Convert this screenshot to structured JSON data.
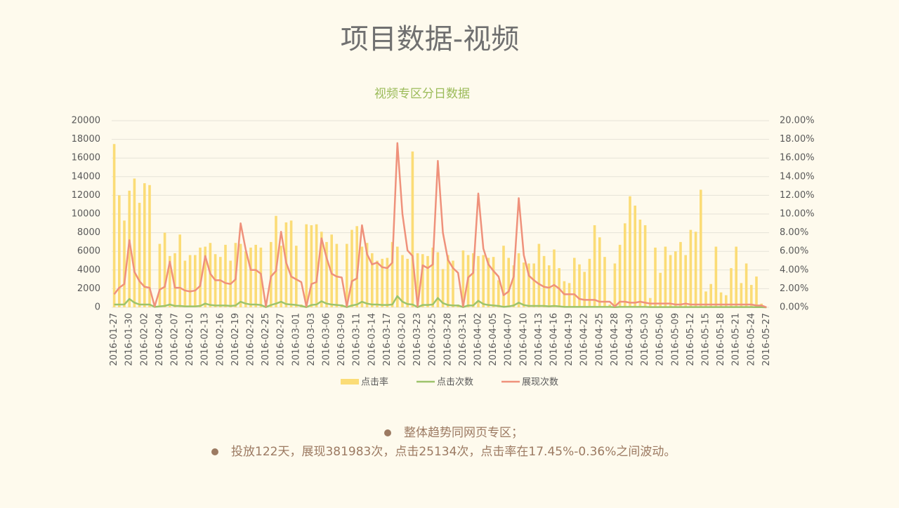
{
  "title": "项目数据-视频",
  "chart_data": {
    "type": "bar",
    "title": "视频专区分日数据",
    "categories": [
      "2016-01-27",
      null,
      null,
      "2016-01-30",
      null,
      null,
      "2016-02-02",
      null,
      null,
      "2016-02-04",
      null,
      null,
      "2016-02-07",
      null,
      null,
      "2016-02-10",
      null,
      null,
      "2016-02-13",
      null,
      null,
      "2016-02-16",
      null,
      null,
      "2016-02-19",
      null,
      null,
      "2016-02-22",
      null,
      null,
      "2016-02-25",
      null,
      null,
      "2016-02-27",
      null,
      null,
      "2016-03-01",
      null,
      null,
      "2016-03-03",
      null,
      null,
      "2016-03-06",
      null,
      null,
      "2016-03-09",
      null,
      null,
      "2016-03-11",
      null,
      null,
      "2016-03-14",
      null,
      null,
      "2016-03-17",
      null,
      null,
      "2016-03-20",
      null,
      null,
      "2016-03-23",
      null,
      null,
      "2016-03-25",
      null,
      null,
      "2016-03-28",
      null,
      null,
      "2016-03-31",
      null,
      null,
      "2016-04-02",
      null,
      null,
      "2016-04-05",
      null,
      null,
      "2016-04-07",
      null,
      null,
      "2016-04-10",
      null,
      null,
      "2016-04-13",
      null,
      null,
      "2016-04-16",
      null,
      null,
      "2016-04-19",
      null,
      null,
      "2016-04-22",
      null,
      null,
      "2016-04-25",
      null,
      null,
      "2016-04-28",
      null,
      null,
      "2016-04-30",
      null,
      null,
      "2016-05-03",
      null,
      null,
      "2016-05-06",
      null,
      null,
      "2016-05-09",
      null,
      null,
      "2016-05-12",
      null,
      null,
      "2016-05-15",
      null,
      null,
      "2016-05-18",
      null,
      null,
      "2016-05-21",
      null,
      null,
      "2016-05-24",
      null,
      null,
      "2016-05-27"
    ],
    "series": [
      {
        "name": "点击率",
        "type": "bar",
        "axis": "y2",
        "color": "#fbdc76",
        "values": [
          17.5,
          12.0,
          9.3,
          12.5,
          13.8,
          11.2,
          13.3,
          13.1,
          0.3,
          6.8,
          8.0,
          5.5,
          5.8,
          7.8,
          5.0,
          5.6,
          5.6,
          6.4,
          6.5,
          6.9,
          5.7,
          5.4,
          6.7,
          5.0,
          6.9,
          6.8,
          6.0,
          6.4,
          6.7,
          6.4,
          0.3,
          7.0,
          9.8,
          6.6,
          9.1,
          9.3,
          6.6,
          0.3,
          8.9,
          8.8,
          8.9,
          8.1,
          7.0,
          7.8,
          6.8,
          0.3,
          6.8,
          8.3,
          8.7,
          6.5,
          6.9,
          5.8,
          5.0,
          5.2,
          5.3,
          7.0,
          6.5,
          5.6,
          5.2,
          16.7,
          5.8,
          5.7,
          5.5,
          6.4,
          5.9,
          4.1,
          5.6,
          5.0,
          0.3,
          6.1,
          5.6,
          5.8,
          5.5,
          5.6,
          5.3,
          5.4,
          2.9,
          6.6,
          5.3,
          4.5,
          5.8,
          4.8,
          4.7,
          4.7,
          6.8,
          5.5,
          4.5,
          6.2,
          4.2,
          2.8,
          2.6,
          5.3,
          4.6,
          3.8,
          5.2,
          8.8,
          7.5,
          5.4,
          0.3,
          4.7,
          6.7,
          9.0,
          11.9,
          10.9,
          9.4,
          8.8,
          1.0,
          6.4,
          3.7,
          6.5,
          5.6,
          6.0,
          7.0,
          5.6,
          8.3,
          8.1,
          12.6,
          1.7,
          2.5,
          6.5,
          1.6,
          1.3,
          4.2,
          6.5,
          2.6,
          4.7,
          2.4,
          3.3,
          0.4,
          0
        ]
      },
      {
        "name": "点击次数",
        "type": "line",
        "color": "#9dc36b",
        "values": [
          300,
          300,
          300,
          900,
          500,
          300,
          300,
          300,
          50,
          100,
          150,
          300,
          150,
          150,
          100,
          100,
          100,
          150,
          400,
          250,
          200,
          200,
          200,
          150,
          200,
          600,
          400,
          300,
          300,
          250,
          20,
          250,
          400,
          600,
          350,
          300,
          250,
          150,
          20,
          250,
          300,
          650,
          400,
          300,
          250,
          200,
          20,
          200,
          300,
          600,
          400,
          300,
          300,
          250,
          250,
          300,
          1200,
          600,
          350,
          300,
          20,
          250,
          250,
          300,
          1000,
          450,
          250,
          200,
          200,
          20,
          200,
          200,
          700,
          350,
          250,
          200,
          150,
          50,
          100,
          200,
          500,
          250,
          150,
          150,
          150,
          150,
          100,
          150,
          100,
          50,
          50,
          50,
          50,
          50,
          50,
          50,
          50,
          50,
          50,
          20,
          50,
          50,
          50,
          50,
          50,
          50,
          30,
          30,
          30,
          30,
          30,
          30,
          30,
          30,
          30,
          30,
          30,
          30,
          30,
          30,
          30,
          30,
          30,
          30,
          30,
          30,
          30,
          20,
          20,
          0
        ]
      },
      {
        "name": "展现次数",
        "type": "line",
        "color": "#ef917b",
        "values": [
          1400,
          2100,
          2500,
          7200,
          3800,
          2800,
          2200,
          2100,
          100,
          1900,
          2200,
          4900,
          2100,
          2100,
          1800,
          1700,
          1800,
          2300,
          5500,
          3600,
          2900,
          2900,
          2600,
          2500,
          3000,
          9000,
          6200,
          4000,
          4000,
          3600,
          100,
          3300,
          3900,
          8100,
          4800,
          3300,
          3000,
          2700,
          100,
          2500,
          2700,
          7400,
          5300,
          3600,
          3300,
          3200,
          100,
          2800,
          3100,
          8800,
          5700,
          4600,
          4800,
          4300,
          4200,
          4800,
          17600,
          10000,
          6100,
          5500,
          100,
          4500,
          4200,
          4600,
          15700,
          8000,
          5100,
          4200,
          3700,
          100,
          3200,
          3700,
          12200,
          6300,
          4600,
          3900,
          3300,
          1300,
          1700,
          3300,
          11700,
          5600,
          3400,
          2900,
          2500,
          2200,
          2100,
          2400,
          2000,
          1400,
          1400,
          1400,
          900,
          800,
          800,
          800,
          600,
          600,
          600,
          100,
          600,
          600,
          500,
          500,
          600,
          500,
          400,
          400,
          400,
          400,
          400,
          300,
          300,
          400,
          300,
          300,
          300,
          300,
          300,
          300,
          300,
          300,
          300,
          300,
          300,
          300,
          300,
          200,
          200,
          0
        ]
      }
    ],
    "ylim": [
      0,
      20000
    ],
    "yticks": [
      0,
      2000,
      4000,
      6000,
      8000,
      10000,
      12000,
      14000,
      16000,
      18000,
      20000
    ],
    "y2lim": [
      0,
      20
    ],
    "y2ticks": [
      {
        "value": 0,
        "label": "0.00%"
      },
      {
        "value": 2,
        "label": "2.00%"
      },
      {
        "value": 4,
        "label": "4.00%"
      },
      {
        "value": 6,
        "label": "6.00%"
      },
      {
        "value": 8,
        "label": "8.00%"
      },
      {
        "value": 10,
        "label": "10.00%"
      },
      {
        "value": 12,
        "label": "12.00%"
      },
      {
        "value": 14,
        "label": "14.00%"
      },
      {
        "value": 16,
        "label": "16.00%"
      },
      {
        "value": 18,
        "label": "18.00%"
      },
      {
        "value": 20,
        "label": "20.00%"
      }
    ],
    "grid": true,
    "legend": "bottom"
  },
  "notes": [
    "整体趋势同网页专区；",
    "投放122天，展现381983次，点击25134次，点击率在17.45%-0.36%之间波动。"
  ]
}
